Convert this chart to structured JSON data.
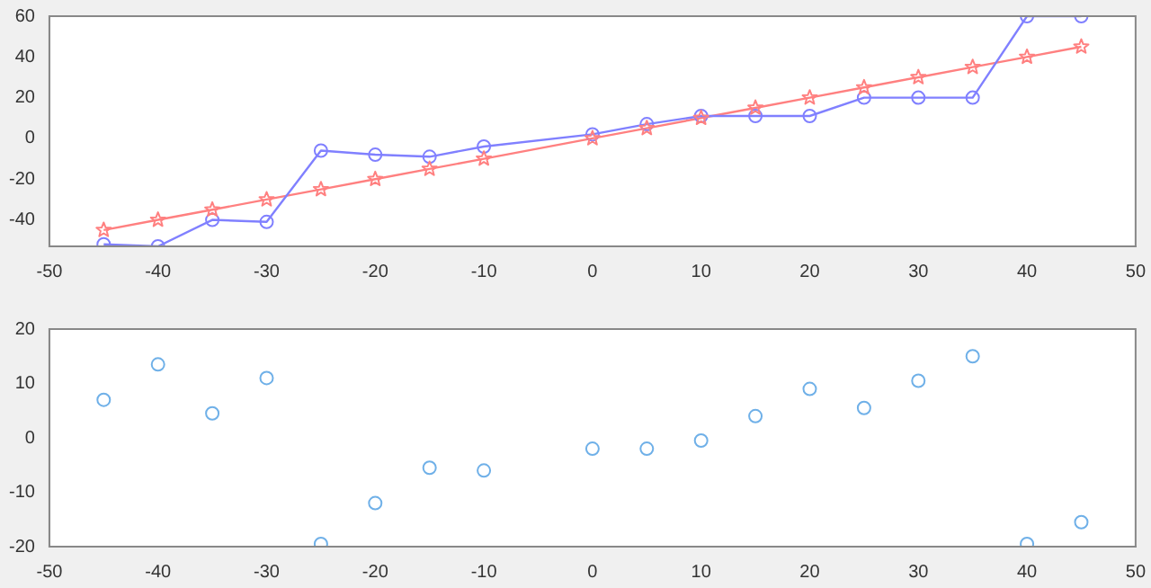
{
  "chart_data": [
    {
      "type": "line",
      "x": [
        -45,
        -40,
        -35,
        -30,
        -25,
        -20,
        -15,
        -10,
        0,
        5,
        10,
        15,
        20,
        25,
        30,
        35,
        40,
        45
      ],
      "series": [
        {
          "color": "#8080ff",
          "marker": "circle",
          "values": [
            -52,
            -53,
            -40,
            -41,
            -6,
            -8,
            -9,
            -4,
            2,
            7,
            11,
            11,
            11,
            20,
            20,
            20,
            60,
            60
          ]
        },
        {
          "color": "#ff8080",
          "marker": "star",
          "values": [
            -45,
            -40,
            -35,
            -30,
            -25,
            -20,
            -15,
            -10,
            0,
            5,
            10,
            15,
            20,
            25,
            30,
            35,
            40,
            45
          ]
        }
      ],
      "xlim": [
        -50,
        50
      ],
      "xticks": [
        -50,
        -40,
        -30,
        -20,
        -10,
        0,
        10,
        20,
        30,
        40,
        50
      ],
      "ylim": [
        -53,
        60
      ],
      "yticks": [
        -40,
        -20,
        0,
        20,
        40,
        60
      ],
      "grid": false
    },
    {
      "type": "scatter",
      "x": [
        -45,
        -40,
        -35,
        -30,
        -25,
        -20,
        -15,
        -10,
        0,
        5,
        10,
        15,
        20,
        25,
        30,
        35,
        40,
        45
      ],
      "series": [
        {
          "color": "#6fb0e8",
          "marker": "circle",
          "values": [
            7,
            13.5,
            4.5,
            11,
            -19.5,
            -12,
            -5.5,
            -6,
            -2,
            -2,
            -0.5,
            4,
            9,
            5.5,
            10.5,
            15,
            -19.5,
            -15.5
          ]
        }
      ],
      "xlim": [
        -50,
        50
      ],
      "xticks": [
        -50,
        -40,
        -30,
        -20,
        -10,
        0,
        10,
        20,
        30,
        40,
        50
      ],
      "ylim": [
        -20,
        20
      ],
      "yticks": [
        -20,
        -10,
        0,
        10,
        20
      ],
      "grid": false
    }
  ]
}
